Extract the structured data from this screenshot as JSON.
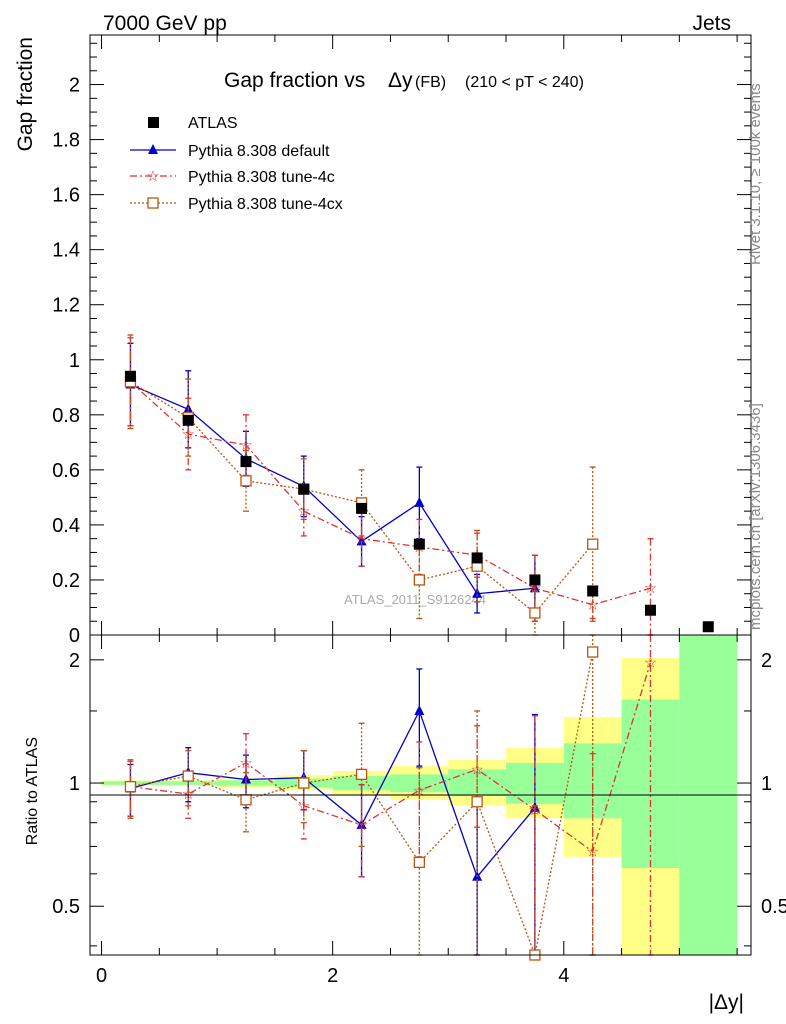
{
  "header": {
    "left": "7000 GeV pp",
    "right": "Jets"
  },
  "side_labels": {
    "top": "Rivet 3.1.10, ≥ 100k events",
    "bottom": "mcplots.cern.ch [arXiv:1306.3436]"
  },
  "colors": {
    "atlas": "#000000",
    "default": "#0000cc",
    "tune4c": "#dd3333",
    "tune4cx": "#bb5511",
    "band_inner": "#99ff99",
    "band_outer": "#ffff88"
  },
  "chart_data": [
    {
      "type": "scatter",
      "title_main": "Gap fraction vs",
      "title_sym": "Δy",
      "title_suffix": " (FB)",
      "title_cut": "(210 < pT < 240)",
      "ylabel": "Gap fraction",
      "watermark": "ATLAS_2011_S9126244",
      "ylim": [
        0,
        2.18
      ],
      "xlim": [
        -0.1,
        5.62
      ],
      "yticks": [
        0,
        0.2,
        0.4,
        0.6,
        0.8,
        1,
        1.2,
        1.4,
        1.6,
        1.8,
        2
      ],
      "ytick_labels": [
        "0",
        "0.2",
        "0.4",
        "0.6",
        "0.8",
        "1",
        "1.2",
        "1.4",
        "1.6",
        "1.8",
        "2"
      ],
      "legend": [
        "ATLAS",
        "Pythia 8.308 default",
        "Pythia 8.308 tune-4c",
        "Pythia 8.308 tune-4cx"
      ],
      "series": [
        {
          "name": "ATLAS",
          "x": [
            0.25,
            0.75,
            1.25,
            1.75,
            2.25,
            2.75,
            3.25,
            3.75,
            4.25,
            4.75,
            5.25
          ],
          "y": [
            0.94,
            0.78,
            0.63,
            0.53,
            0.46,
            0.33,
            0.28,
            0.2,
            0.16,
            0.09,
            0.03
          ]
        },
        {
          "name": "Pythia 8.308 default",
          "x": [
            0.25,
            0.75,
            1.25,
            1.75,
            2.25,
            2.75,
            3.25,
            3.75
          ],
          "y": [
            0.91,
            0.82,
            0.64,
            0.54,
            0.34,
            0.48,
            0.15,
            0.17
          ],
          "err": [
            0.15,
            0.14,
            0.1,
            0.11,
            0.09,
            0.13,
            0.07,
            0.12
          ]
        },
        {
          "name": "Pythia 8.308 tune-4c",
          "x": [
            0.25,
            0.75,
            1.25,
            1.75,
            2.25,
            2.75,
            3.25,
            3.75,
            4.25,
            4.75
          ],
          "y": [
            0.92,
            0.73,
            0.69,
            0.45,
            0.35,
            0.32,
            0.29,
            0.17,
            0.11,
            0.17
          ],
          "err": [
            0.16,
            0.13,
            0.11,
            0.09,
            0.1,
            0.1,
            0.08,
            0.12,
            0.05,
            0.18
          ]
        },
        {
          "name": "Pythia 8.308 tune-4cx",
          "x": [
            0.25,
            0.75,
            1.25,
            1.75,
            2.25,
            2.75,
            3.25,
            3.75,
            4.25
          ],
          "y": [
            0.92,
            0.79,
            0.56,
            0.53,
            0.48,
            0.2,
            0.25,
            0.08,
            0.33
          ],
          "err": [
            0.17,
            0.14,
            0.11,
            0.11,
            0.12,
            0.14,
            0.13,
            0.08,
            0.28
          ]
        }
      ]
    },
    {
      "type": "scatter",
      "ylabel": "Ratio to ATLAS",
      "xlabel": "|Δy|",
      "ylim": [
        0.38,
        2.3
      ],
      "xlim": [
        -0.1,
        5.62
      ],
      "xticks": [
        0,
        2,
        4
      ],
      "xtick_labels": [
        "0",
        "2",
        "4"
      ],
      "yticks": [
        0.5,
        1,
        2
      ],
      "ytick_labels": [
        "0.5",
        "1",
        "2"
      ],
      "bands": {
        "x": [
          [
            0,
            0.5
          ],
          [
            0.5,
            1
          ],
          [
            1,
            1.5
          ],
          [
            1.5,
            2
          ],
          [
            2,
            2.5
          ],
          [
            2.5,
            3
          ],
          [
            3,
            3.5
          ],
          [
            3.5,
            4
          ],
          [
            4,
            4.5
          ],
          [
            4.5,
            5
          ],
          [
            5,
            5.5
          ]
        ],
        "inner": [
          [
            0.99,
            1.01
          ],
          [
            0.99,
            1.01
          ],
          [
            0.985,
            1.015
          ],
          [
            0.975,
            1.025
          ],
          [
            0.96,
            1.04
          ],
          [
            0.95,
            1.05
          ],
          [
            0.93,
            1.08
          ],
          [
            0.89,
            1.12
          ],
          [
            0.82,
            1.25
          ],
          [
            0.62,
            1.6
          ],
          [
            0.38,
            2.3
          ]
        ],
        "outer": [
          [
            0.985,
            1.015
          ],
          [
            0.985,
            1.015
          ],
          [
            0.975,
            1.025
          ],
          [
            0.96,
            1.045
          ],
          [
            0.93,
            1.07
          ],
          [
            0.91,
            1.1
          ],
          [
            0.88,
            1.14
          ],
          [
            0.82,
            1.22
          ],
          [
            0.66,
            1.45
          ],
          [
            0.38,
            2.02
          ],
          [
            0.38,
            2.3
          ]
        ]
      },
      "series": [
        {
          "name": "Pythia 8.308 default",
          "x": [
            0.25,
            0.75,
            1.25,
            1.75,
            2.25,
            2.75,
            3.25,
            3.75
          ],
          "y": [
            0.97,
            1.06,
            1.02,
            1.03,
            0.79,
            1.5,
            0.59,
            0.87
          ],
          "err": [
            0.14,
            0.16,
            0.15,
            0.17,
            0.2,
            0.4,
            0.32,
            0.6
          ]
        },
        {
          "name": "Pythia 8.308 tune-4c",
          "x": [
            0.25,
            0.75,
            1.25,
            1.75,
            2.25,
            2.75,
            3.25,
            3.75,
            4.25,
            4.75
          ],
          "y": [
            0.98,
            0.94,
            1.12,
            0.88,
            0.79,
            0.96,
            1.08,
            0.86,
            0.68,
            1.97
          ],
          "err": [
            0.15,
            0.12,
            0.2,
            0.15,
            0.2,
            0.3,
            0.3,
            0.6,
            0.5,
            2.0
          ]
        },
        {
          "name": "Pythia 8.308 tune-4cx",
          "x": [
            0.25,
            0.75,
            1.25,
            1.75,
            2.25,
            2.75,
            3.25,
            3.75,
            4.25
          ],
          "y": [
            0.98,
            1.04,
            0.91,
            1.0,
            1.05,
            0.64,
            0.9,
            0.38,
            2.09
          ],
          "err": [
            0.16,
            0.16,
            0.15,
            0.2,
            0.35,
            0.45,
            0.6,
            0.5,
            2.0
          ]
        }
      ]
    }
  ]
}
